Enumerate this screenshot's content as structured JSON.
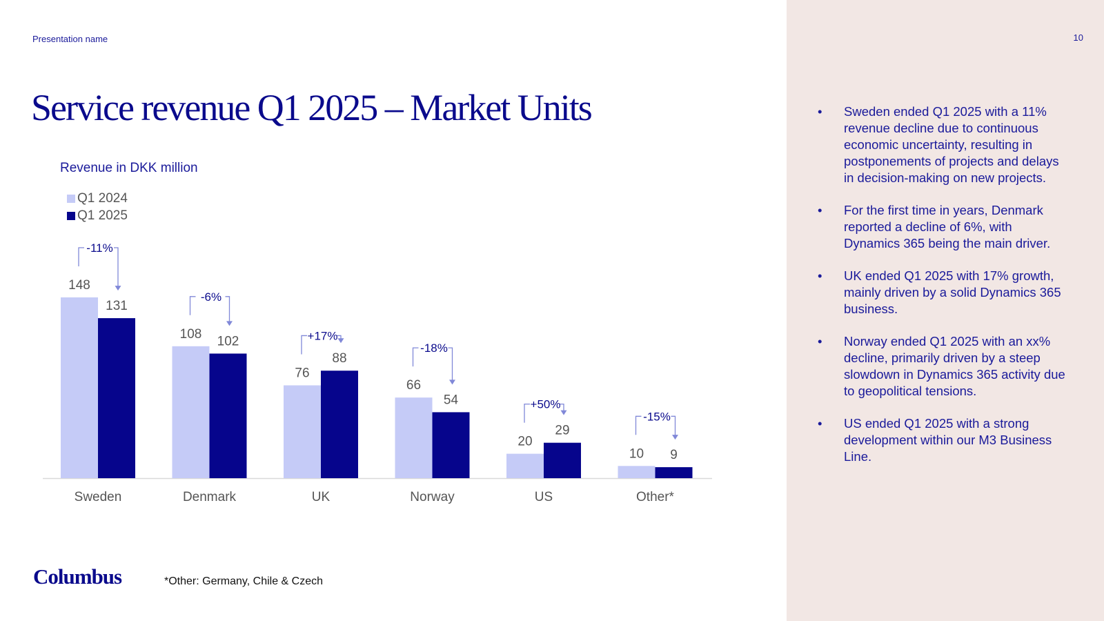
{
  "header": {
    "presentation_name": "Presentation name",
    "page_number": "10"
  },
  "title": "Service revenue Q1 2025 – Market Units",
  "chart_data": {
    "type": "bar",
    "subtitle": "Revenue in DKK million",
    "categories": [
      "Sweden",
      "Denmark",
      "UK",
      "Norway",
      "US",
      "Other*"
    ],
    "series": [
      {
        "name": "Q1 2024",
        "values": [
          148,
          108,
          76,
          66,
          20,
          10
        ],
        "color": "#c5cbf7"
      },
      {
        "name": "Q1 2025",
        "values": [
          131,
          102,
          88,
          54,
          29,
          9
        ],
        "color": "#06058c"
      }
    ],
    "changes": [
      "-11%",
      "-6%",
      "+17%",
      "-18%",
      "+50%",
      "-15%"
    ],
    "ylim": [
      0,
      148
    ],
    "legend_position": "top-left",
    "grid": false
  },
  "footnote": "*Other: Germany, Chile & Czech",
  "logo_text": "Columbus",
  "bullets": [
    "Sweden ended Q1 2025 with a 11% revenue decline due to continuous economic uncertainty, resulting in postponements of projects and delays in decision-making on new projects.",
    "For the first time in years, Denmark reported a decline of 6%, with Dynamics 365 being the main driver.",
    "UK ended Q1 2025 with 17% growth, mainly driven by a solid Dynamics 365 business.",
    "Norway ended Q1 2025 with an xx% decline, primarily driven by a steep slowdown in Dynamics 365 activity due to geopolitical tensions.",
    "US ended Q1 2025 with a strong development within our M3 Business Line."
  ],
  "bullet_symbol": "•",
  "colors": {
    "accent": "#0a0a8c",
    "right_panel": "#f2e7e4",
    "bar_light": "#c5cbf7",
    "bar_dark": "#06058c",
    "arrow": "#8088d8"
  }
}
